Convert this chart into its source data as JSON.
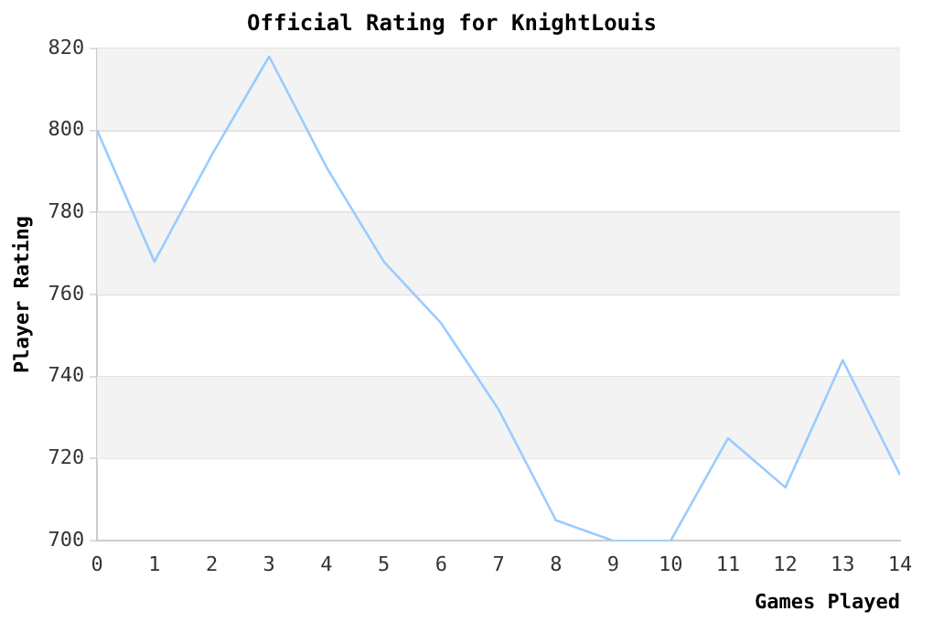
{
  "chart_data": {
    "type": "line",
    "title": "Official Rating for KnightLouis",
    "xlabel": "Games Played",
    "ylabel": "Player Rating",
    "x": [
      0,
      1,
      2,
      3,
      4,
      5,
      6,
      7,
      8,
      9,
      10,
      11,
      12,
      13,
      14
    ],
    "series": [
      {
        "color": "#99ccff",
        "values": [
          800,
          768,
          794,
          818,
          791,
          768,
          753,
          732,
          705,
          700,
          700,
          725,
          713,
          744,
          716
        ]
      }
    ],
    "xlim": [
      0,
      14
    ],
    "xticks": [
      0,
      1,
      2,
      3,
      4,
      5,
      6,
      7,
      8,
      9,
      10,
      11,
      12,
      13,
      14
    ],
    "ylim": [
      700,
      820
    ],
    "yticks": [
      700,
      720,
      740,
      760,
      780,
      800,
      820
    ],
    "grid": "y",
    "legend": false,
    "marker": "none",
    "line_style": "solid"
  }
}
